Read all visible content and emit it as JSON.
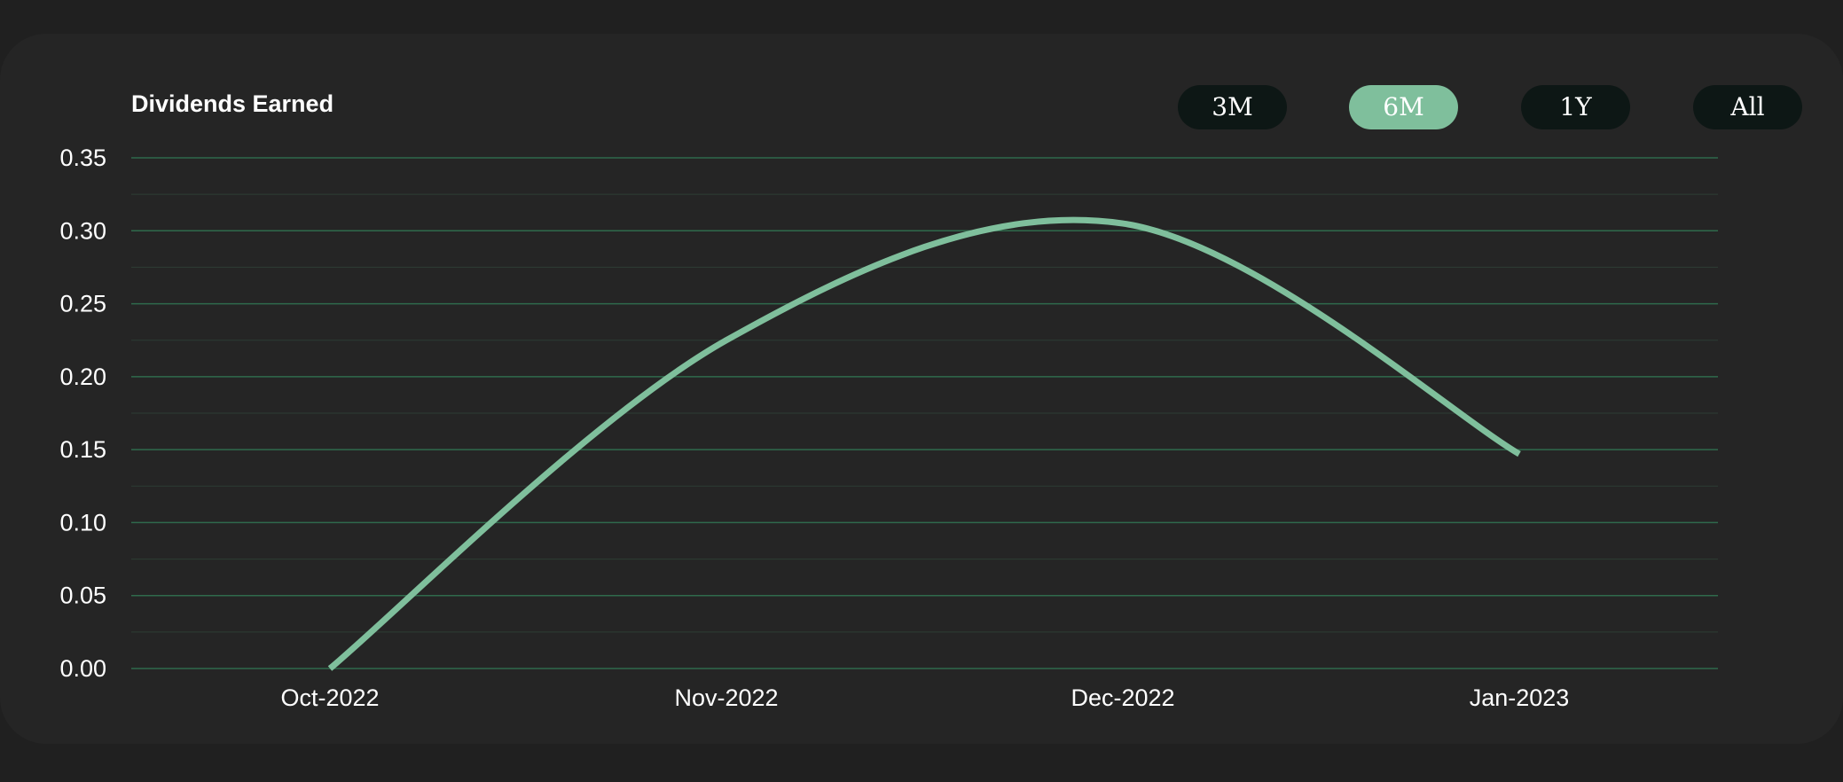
{
  "header": {
    "title": "Dividends Earned"
  },
  "range_buttons": [
    {
      "label": "3M",
      "active": false
    },
    {
      "label": "6M",
      "active": true
    },
    {
      "label": "1Y",
      "active": false
    },
    {
      "label": "All",
      "active": false
    }
  ],
  "colors": {
    "page_background": "#202020",
    "card_background": "#252525",
    "line": "#7fbf9c",
    "gridline": "#2f6a4c",
    "button_background": "#0d1715",
    "button_active_background": "#7fbf9c",
    "text": "#ffffff"
  },
  "chart_data": {
    "type": "line",
    "title": "Dividends Earned",
    "xlabel": "",
    "ylabel": "",
    "x_ticks": [
      "Oct-2022",
      "Nov-2022",
      "Dec-2022",
      "Jan-2023"
    ],
    "y_ticks": [
      "0.00",
      "0.05",
      "0.10",
      "0.15",
      "0.20",
      "0.25",
      "0.30",
      "0.35"
    ],
    "ylim": [
      0,
      0.35
    ],
    "grid": true,
    "legend": "none",
    "series": [
      {
        "x": [
          "Oct-2022",
          "Nov-2022",
          "Dec-2022",
          "Jan-2023"
        ],
        "values": [
          0.0,
          0.225,
          0.305,
          0.147
        ]
      }
    ]
  }
}
